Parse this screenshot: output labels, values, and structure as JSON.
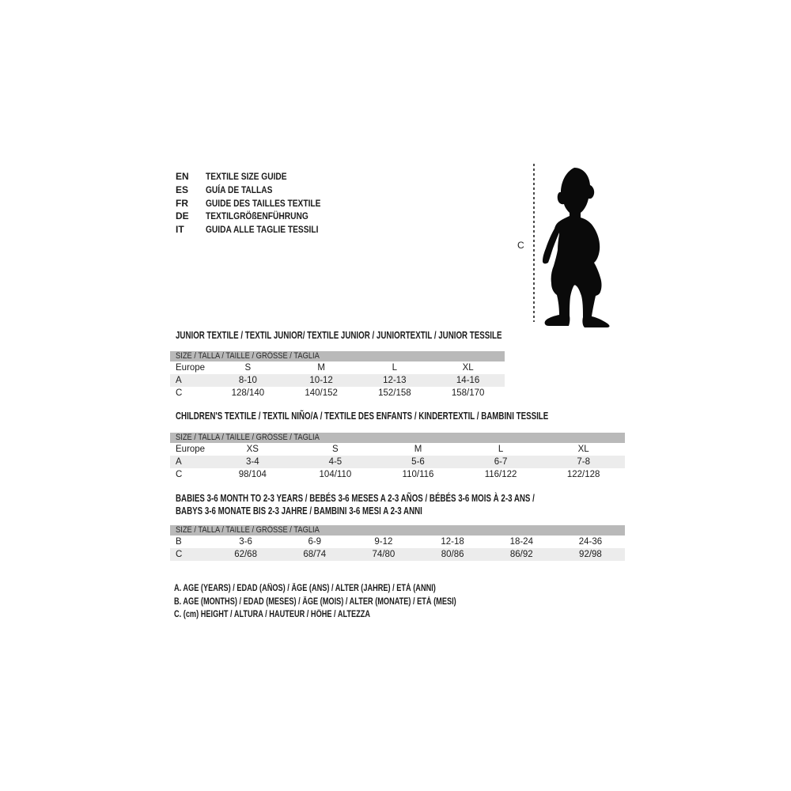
{
  "colors": {
    "bar_background": "#b9b9b9",
    "alt_row_background": "#ececec",
    "text": "#1c1c1c",
    "silhouette": "#0a0a0a"
  },
  "header": {
    "languages": [
      {
        "code": "EN",
        "label": "TEXTILE SIZE GUIDE"
      },
      {
        "code": "ES",
        "label": "GUÍA DE TALLAS"
      },
      {
        "code": "FR",
        "label": "GUIDE DES TAILLES TEXTILE"
      },
      {
        "code": "DE",
        "label": "TEXTILGRÖßENFÜHRUNG"
      },
      {
        "code": "IT",
        "label": "GUIDA ALLE TAGLIE TESSILI"
      }
    ]
  },
  "figure": {
    "height_label": "C"
  },
  "tables": [
    {
      "title_lines": [
        "JUNIOR TEXTILE / TEXTIL JUNIOR/ TEXTILE JUNIOR / JUNIORTEXTIL / JUNIOR TESSILE"
      ],
      "size_bar": "SIZE / TALLA / TAILLE / GRÖSSE / TAGLIA",
      "rows": [
        {
          "label": "Europe",
          "values": [
            "S",
            "M",
            "L",
            "XL"
          ]
        },
        {
          "label": "A",
          "values": [
            "8-10",
            "10-12",
            "12-13",
            "14-16"
          ]
        },
        {
          "label": "C",
          "values": [
            "128/140",
            "140/152",
            "152/158",
            "158/170"
          ]
        }
      ]
    },
    {
      "title_lines": [
        "CHILDREN'S TEXTILE / TEXTIL NIÑO/A / TEXTILE DES ENFANTS / KINDERTEXTIL / BAMBINI TESSILE"
      ],
      "size_bar": "SIZE / TALLA / TAILLE / GRÖSSE / TAGLIA",
      "rows": [
        {
          "label": "Europe",
          "values": [
            "XS",
            "S",
            "M",
            "L",
            "XL"
          ]
        },
        {
          "label": "A",
          "values": [
            "3-4",
            "4-5",
            "5-6",
            "6-7",
            "7-8"
          ]
        },
        {
          "label": "C",
          "values": [
            "98/104",
            "104/110",
            "110/116",
            "116/122",
            "122/128"
          ]
        }
      ]
    },
    {
      "title_lines": [
        "BABIES 3-6 MONTH TO 2-3 YEARS / BEBÉS 3-6 MESES A 2-3 AÑOS / BÉBÉS 3-6 MOIS À 2-3 ANS /",
        "BABYS 3-6 MONATE BIS 2-3 JAHRE / BAMBINI 3-6 MESI A 2-3 ANNI"
      ],
      "size_bar": "SIZE / TALLA / TAILLE / GRÖSSE / TAGLIA",
      "rows": [
        {
          "label": "B",
          "values": [
            "3-6",
            "6-9",
            "9-12",
            "12-18",
            "18-24",
            "24-36"
          ]
        },
        {
          "label": "C",
          "values": [
            "62/68",
            "68/74",
            "74/80",
            "80/86",
            "86/92",
            "92/98"
          ]
        }
      ]
    }
  ],
  "legend": [
    "A. AGE (YEARS) / EDAD (AÑOS) / ÂGE (ANS) / ALTER (JAHRE) / ETÀ (ANNI)",
    "B. AGE (MONTHS) / EDAD (MESES) / ÂGE (MOIS) / ALTER (MONATE) / ETÀ (MESI)",
    "C. (cm) HEIGHT / ALTURA / HAUTEUR / HÖHE / ALTEZZA"
  ]
}
